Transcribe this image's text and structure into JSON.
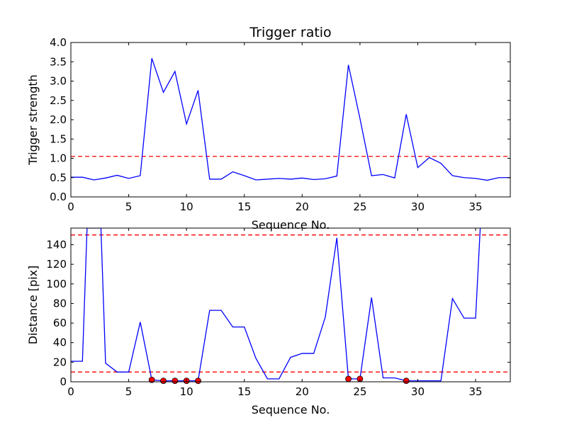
{
  "chart_data": [
    {
      "type": "line",
      "title": "Trigger ratio",
      "xlabel": "Sequence No.",
      "ylabel": "Trigger strength",
      "xlim": [
        0,
        38
      ],
      "ylim": [
        0,
        4.0
      ],
      "xticks": [
        "0",
        "5",
        "10",
        "15",
        "20",
        "25",
        "30",
        "35"
      ],
      "yticks": [
        "0.0",
        "0.5",
        "1.0",
        "1.5",
        "2.0",
        "2.5",
        "3.0",
        "3.5",
        "4.0"
      ],
      "grid": false,
      "series": [
        {
          "color": "#0000ff",
          "x": [
            0,
            1,
            2,
            3,
            4,
            5,
            6,
            7,
            8,
            9,
            10,
            11,
            12,
            13,
            14,
            15,
            16,
            17,
            18,
            19,
            20,
            21,
            22,
            23,
            24,
            25,
            26,
            27,
            28,
            29,
            30,
            31,
            32,
            33,
            34,
            35,
            36,
            37,
            38
          ],
          "values": [
            0.51,
            0.51,
            0.44,
            0.49,
            0.56,
            0.48,
            0.55,
            3.59,
            2.71,
            3.25,
            1.89,
            2.76,
            0.46,
            0.46,
            0.65,
            0.55,
            0.44,
            0.46,
            0.48,
            0.46,
            0.49,
            0.45,
            0.47,
            0.54,
            3.42,
            2.03,
            0.55,
            0.58,
            0.49,
            2.14,
            0.76,
            1.02,
            0.87,
            0.55,
            0.5,
            0.48,
            0.43,
            0.5,
            0.5
          ]
        }
      ],
      "threshold_lines": [
        {
          "y": 1.05,
          "color": "#ff0000",
          "style": "dashed"
        }
      ]
    },
    {
      "type": "line",
      "title": "",
      "xlabel": "Sequence No.",
      "ylabel": "Distance [pix]",
      "xlim": [
        0,
        38
      ],
      "ylim": [
        0,
        157
      ],
      "xticks": [
        "0",
        "5",
        "10",
        "15",
        "20",
        "25",
        "30",
        "35"
      ],
      "yticks": [
        "0",
        "20",
        "40",
        "60",
        "80",
        "100",
        "120",
        "140"
      ],
      "grid": false,
      "series": [
        {
          "color": "#0000ff",
          "x": [
            0,
            1,
            1.4,
            2.6,
            3,
            4,
            5,
            6,
            7,
            8,
            9,
            10,
            11,
            12,
            13,
            14,
            15,
            16,
            17,
            18,
            19,
            20,
            21,
            22,
            23,
            24,
            25,
            26,
            27,
            28,
            29,
            30,
            31,
            32,
            33,
            34,
            35,
            35.4
          ],
          "values": [
            21,
            21,
            157,
            157,
            19,
            10,
            10,
            61,
            2,
            1,
            1,
            1,
            1,
            73,
            73,
            56,
            56,
            24,
            3,
            3,
            25,
            29,
            29,
            66,
            147,
            3,
            3,
            86,
            4,
            4,
            1,
            1,
            1,
            1,
            85,
            65,
            65,
            157
          ]
        }
      ],
      "markers": {
        "color": "#ff0000",
        "x": [
          7,
          8,
          9,
          10,
          11,
          24,
          25,
          29
        ],
        "values": [
          2,
          1,
          1,
          1,
          1,
          3,
          3,
          1
        ]
      },
      "threshold_lines": [
        {
          "y": 150,
          "color": "#ff0000",
          "style": "dashed"
        },
        {
          "y": 10,
          "color": "#ff0000",
          "style": "dashed"
        }
      ]
    }
  ]
}
